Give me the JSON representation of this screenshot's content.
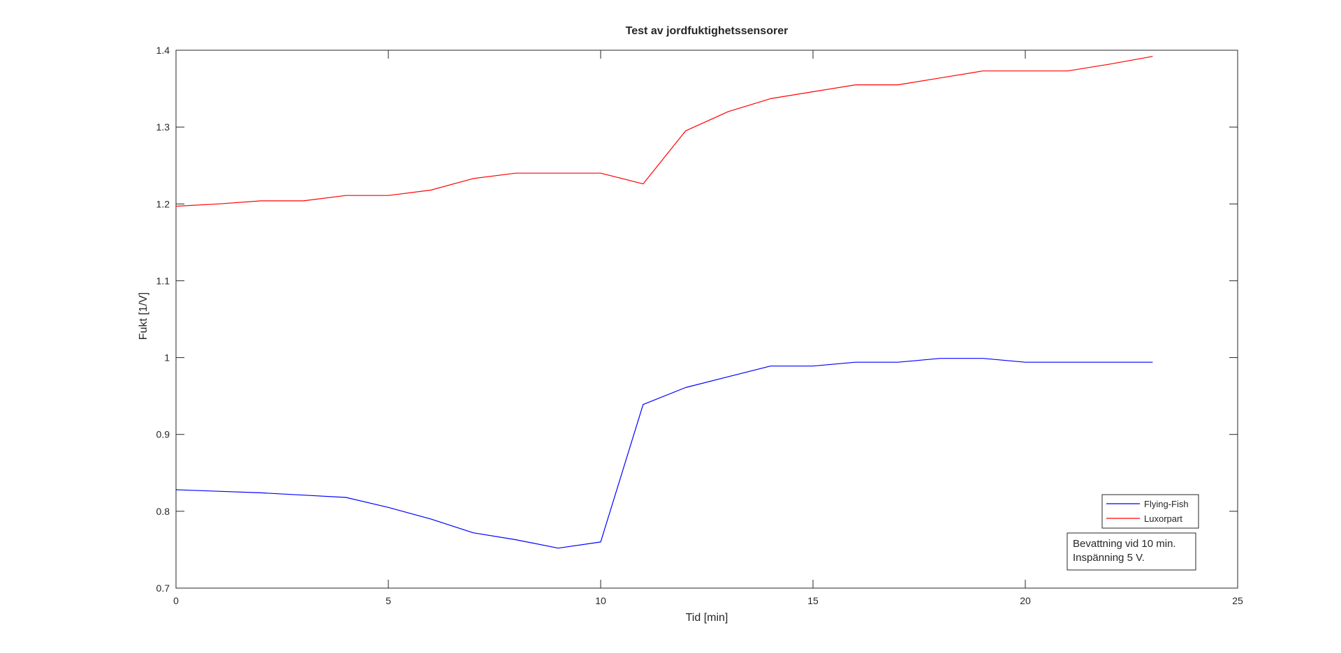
{
  "chart_data": {
    "type": "line",
    "title": "Test av jordfuktighetssensorer",
    "xlabel": "Tid [min]",
    "ylabel": "Fukt [1/V]",
    "xlim": [
      0,
      25
    ],
    "ylim": [
      0.7,
      1.4
    ],
    "xticks": [
      0,
      5,
      10,
      15,
      20,
      25
    ],
    "yticks": [
      0.7,
      0.8,
      0.9,
      1.0,
      1.1,
      1.2,
      1.3,
      1.4
    ],
    "xtick_labels": [
      "0",
      "5",
      "10",
      "15",
      "20",
      "25"
    ],
    "ytick_labels": [
      "0.7",
      "0.8",
      "0.9",
      "1",
      "1.1",
      "1.2",
      "1.3",
      "1.4"
    ],
    "grid": false,
    "legend_position": "bottom-right",
    "x": [
      0,
      1,
      2,
      3,
      4,
      5,
      6,
      7,
      8,
      9,
      10,
      11,
      12,
      13,
      14,
      15,
      16,
      17,
      18,
      19,
      20,
      21,
      22,
      23
    ],
    "series": [
      {
        "name": "Flying-Fish",
        "color": "#0000ff",
        "values": [
          0.828,
          0.826,
          0.824,
          0.821,
          0.818,
          0.805,
          0.79,
          0.772,
          0.763,
          0.752,
          0.76,
          0.939,
          0.961,
          0.975,
          0.989,
          0.989,
          0.994,
          0.994,
          0.999,
          0.999,
          0.994,
          0.994,
          0.994,
          0.994
        ]
      },
      {
        "name": "Luxorpart",
        "color": "#ff0000",
        "values": [
          1.197,
          1.2,
          1.204,
          1.204,
          1.211,
          1.211,
          1.218,
          1.233,
          1.24,
          1.24,
          1.24,
          1.226,
          1.295,
          1.32,
          1.337,
          1.346,
          1.355,
          1.355,
          1.364,
          1.373,
          1.373,
          1.373,
          1.382,
          1.392
        ]
      }
    ],
    "annotation": {
      "lines": [
        "Bevattning vid 10 min.",
        "Inspänning 5 V."
      ]
    }
  }
}
